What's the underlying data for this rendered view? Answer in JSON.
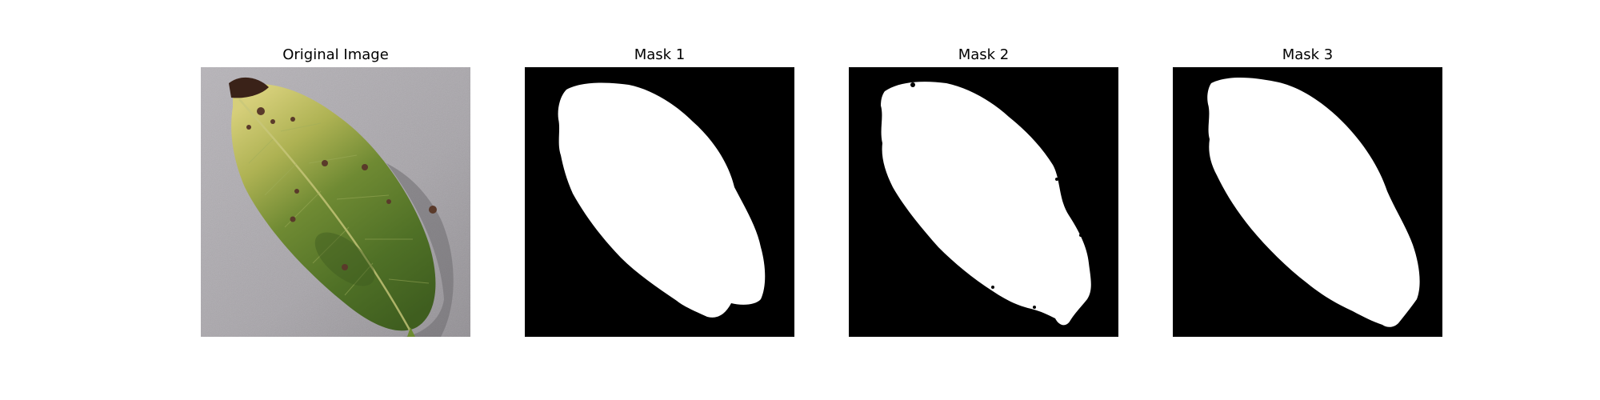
{
  "figure": {
    "panels": [
      {
        "title": "Original Image"
      },
      {
        "title": "Mask 1"
      },
      {
        "title": "Mask 2"
      },
      {
        "title": "Mask 3"
      }
    ]
  },
  "colors": {
    "background": "#ffffff",
    "mask_background": "#000000",
    "mask_foreground": "#ffffff",
    "leaf_green": "#5a7a2c",
    "leaf_yellow": "#c9c26a",
    "surface_gray": "#a9a6ab"
  }
}
